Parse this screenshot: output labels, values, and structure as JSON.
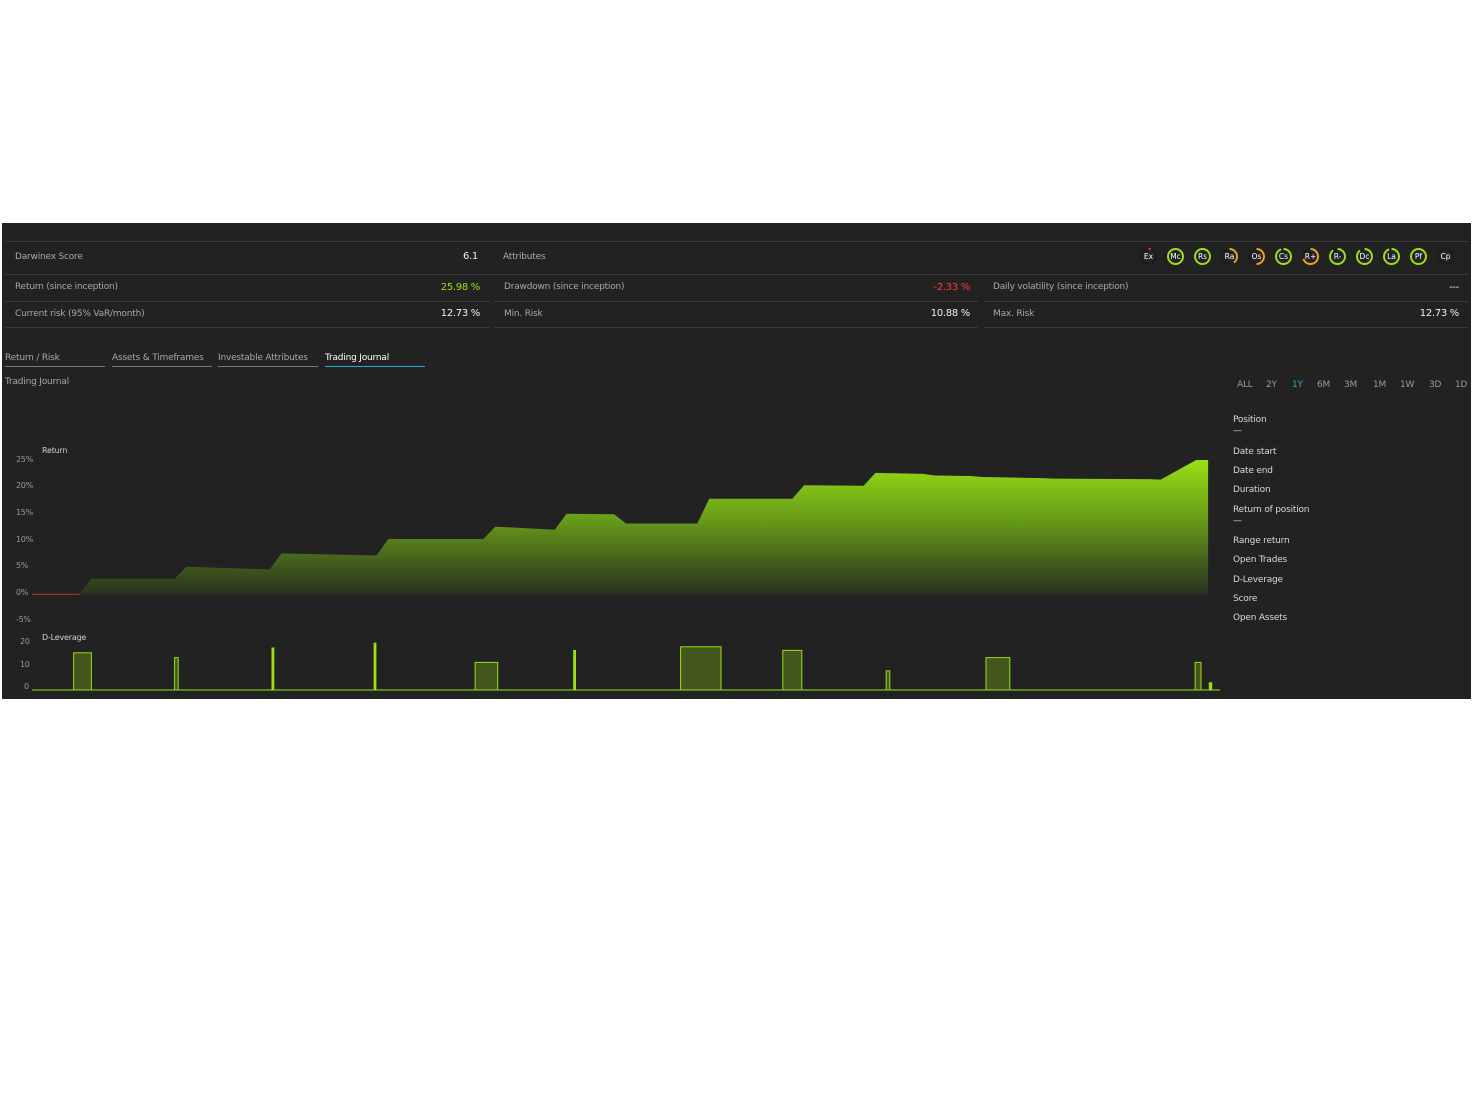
{
  "stats": {
    "darwinex_score": {
      "label": "Darwinex Score",
      "value": "6.1"
    },
    "attributes_label": "Attributes",
    "return": {
      "label": "Return (since inception)",
      "value": "25.98 %"
    },
    "drawdown": {
      "label": "Drawdown (since inception)",
      "value": "-2.33 %"
    },
    "daily_volatility": {
      "label": "Daily volatility (since inception)",
      "value": "---"
    },
    "current_risk": {
      "label": "Current risk (95% VaR/month)",
      "value": "12.73 %"
    },
    "min_risk": {
      "label": "Min. Risk",
      "value": "10.88 %"
    },
    "max_risk": {
      "label": "Max. Risk",
      "value": "12.73 %"
    }
  },
  "attributes": [
    {
      "code": "Ex",
      "level": 0.05,
      "color": "#e03a2a"
    },
    {
      "code": "Mc",
      "level": 1.0,
      "color": "#9be012"
    },
    {
      "code": "Rs",
      "level": 1.0,
      "color": "#9be012"
    },
    {
      "code": "Ra",
      "level": 0.4,
      "color": "#f0a020"
    },
    {
      "code": "Os",
      "level": 0.5,
      "color": "#f0a020"
    },
    {
      "code": "Cs",
      "level": 0.95,
      "color": "#9be012"
    },
    {
      "code": "R+",
      "level": 0.7,
      "color": "#f0a020"
    },
    {
      "code": "R-",
      "level": 0.9,
      "color": "#9be012"
    },
    {
      "code": "Dc",
      "level": 0.9,
      "color": "#9be012"
    },
    {
      "code": "La",
      "level": 0.95,
      "color": "#9be012"
    },
    {
      "code": "Pf",
      "level": 1.0,
      "color": "#9be012"
    },
    {
      "code": "Cp",
      "level": 0.0,
      "color": "#9be012"
    }
  ],
  "tabs": [
    {
      "label": "Return / Risk",
      "active": false
    },
    {
      "label": "Assets & Timeframes",
      "active": false
    },
    {
      "label": "Investable Attributes",
      "active": false
    },
    {
      "label": "Trading Journal",
      "active": true
    }
  ],
  "section_title": "Trading Journal",
  "ranges": [
    {
      "label": "ALL",
      "active": false
    },
    {
      "label": "2Y",
      "active": false
    },
    {
      "label": "1Y",
      "active": true
    },
    {
      "label": "6M",
      "active": false
    },
    {
      "label": "3M",
      "active": false
    },
    {
      "label": "1M",
      "active": false
    },
    {
      "label": "1W",
      "active": false
    },
    {
      "label": "3D",
      "active": false
    },
    {
      "label": "1D",
      "active": false
    }
  ],
  "info_panel": {
    "position": {
      "label": "Position",
      "value": "—"
    },
    "date_start": "Date start",
    "date_end": "Date end",
    "duration": "Duration",
    "return_of_position": {
      "label": "Return of position",
      "value": "—"
    },
    "range_return": "Range return",
    "open_trades": "Open Trades",
    "d_leverage": "D-Leverage",
    "score": "Score",
    "open_assets": "Open Assets"
  },
  "chart_data": [
    {
      "type": "area",
      "title": "Return",
      "y_ticks": [
        "25%",
        "20%",
        "15%",
        "10%",
        "5%",
        "0%",
        "-5%"
      ],
      "ylim": [
        -5,
        26
      ],
      "x": [
        0,
        4,
        5,
        12,
        13,
        20,
        21,
        29,
        30,
        38,
        39,
        44,
        45,
        49,
        50,
        56,
        57,
        64,
        65,
        70,
        71,
        75,
        76,
        79,
        80,
        85,
        86,
        94,
        95,
        98,
        99
      ],
      "y": [
        0,
        0,
        3,
        3,
        5.3,
        4.8,
        7.9,
        7.5,
        10.7,
        10.7,
        13.1,
        12.5,
        15.6,
        15.5,
        13.7,
        13.7,
        18.5,
        18.5,
        21.1,
        21.0,
        23.5,
        23.3,
        23.0,
        22.9,
        22.7,
        22.5,
        22.4,
        22.3,
        22.2,
        26.0,
        26.0
      ],
      "color": "#9be012"
    },
    {
      "type": "bar",
      "title": "D-Leverage",
      "y_ticks": [
        "20",
        "10",
        "0"
      ],
      "ylim": [
        0,
        20
      ],
      "bars": [
        {
          "x0": 3.5,
          "x1": 5.0,
          "value": 15.5
        },
        {
          "x0": 12.0,
          "x1": 12.3,
          "value": 13.5
        },
        {
          "x0": 20.2,
          "x1": 20.35,
          "value": 17.5
        },
        {
          "x0": 28.8,
          "x1": 28.95,
          "value": 19.5
        },
        {
          "x0": 37.3,
          "x1": 39.2,
          "value": 11.5
        },
        {
          "x0": 45.6,
          "x1": 45.75,
          "value": 16.5
        },
        {
          "x0": 54.6,
          "x1": 58.0,
          "value": 18.0
        },
        {
          "x0": 63.2,
          "x1": 64.8,
          "value": 16.5
        },
        {
          "x0": 71.9,
          "x1": 72.2,
          "value": 8.0
        },
        {
          "x0": 80.3,
          "x1": 82.3,
          "value": 13.5
        },
        {
          "x0": 97.9,
          "x1": 98.4,
          "value": 11.5
        },
        {
          "x0": 99.1,
          "x1": 99.3,
          "value": 3.0
        }
      ],
      "color": "#9be012"
    }
  ]
}
